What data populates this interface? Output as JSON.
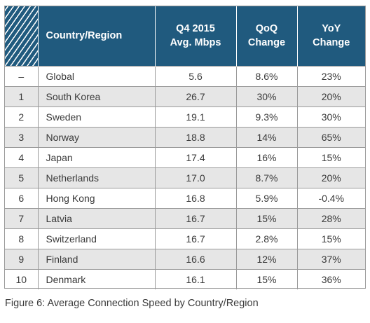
{
  "table": {
    "headers": {
      "country": "Country/Region",
      "speed_line1": "Q4 2015",
      "speed_line2": "Avg. Mbps",
      "qoq_line1": "QoQ",
      "qoq_line2": "Change",
      "yoy_line1": "YoY",
      "yoy_line2": "Change"
    },
    "rows": [
      {
        "rank": "–",
        "country": "Global",
        "speed": "5.6",
        "qoq": "8.6%",
        "yoy": "23%"
      },
      {
        "rank": "1",
        "country": "South Korea",
        "speed": "26.7",
        "qoq": "30%",
        "yoy": "20%"
      },
      {
        "rank": "2",
        "country": "Sweden",
        "speed": "19.1",
        "qoq": "9.3%",
        "yoy": "30%"
      },
      {
        "rank": "3",
        "country": "Norway",
        "speed": "18.8",
        "qoq": "14%",
        "yoy": "65%"
      },
      {
        "rank": "4",
        "country": "Japan",
        "speed": "17.4",
        "qoq": "16%",
        "yoy": "15%"
      },
      {
        "rank": "5",
        "country": "Netherlands",
        "speed": "17.0",
        "qoq": "8.7%",
        "yoy": "20%"
      },
      {
        "rank": "6",
        "country": "Hong Kong",
        "speed": "16.8",
        "qoq": "5.9%",
        "yoy": "-0.4%"
      },
      {
        "rank": "7",
        "country": "Latvia",
        "speed": "16.7",
        "qoq": "15%",
        "yoy": "28%"
      },
      {
        "rank": "8",
        "country": "Switzerland",
        "speed": "16.7",
        "qoq": "2.8%",
        "yoy": "15%"
      },
      {
        "rank": "9",
        "country": "Finland",
        "speed": "16.6",
        "qoq": "12%",
        "yoy": "37%"
      },
      {
        "rank": "10",
        "country": "Denmark",
        "speed": "16.1",
        "qoq": "15%",
        "yoy": "36%"
      }
    ]
  },
  "caption": "Figure 6: Average Connection Speed by Country/Region",
  "colors": {
    "header_bg": "#205a7e",
    "header_text": "#ffffff",
    "alt_row_bg": "#e6e6e6",
    "border": "#9a9a9a"
  }
}
